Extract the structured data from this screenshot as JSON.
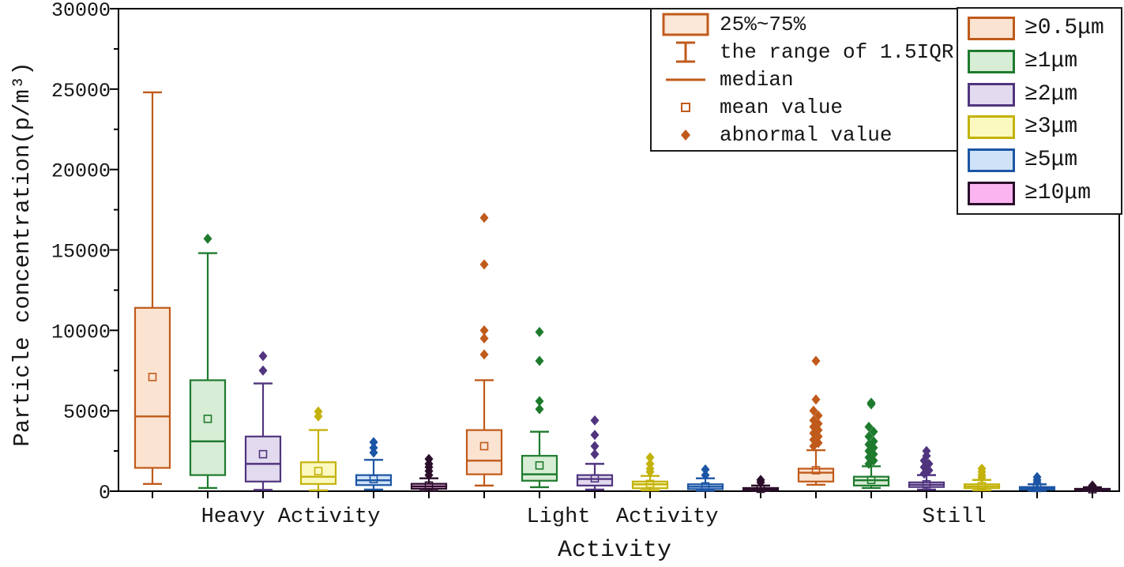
{
  "figure": {
    "y_axis": {
      "label": "Particle concentration(p/m³)",
      "ticks": [
        0,
        5000,
        10000,
        15000,
        20000,
        25000,
        30000
      ],
      "minor_ticks": [
        2500,
        7500,
        12500,
        17500,
        22500,
        27500
      ],
      "max": 30000
    },
    "x_axis": {
      "label": "Activity",
      "group_labels": [
        "Heavy Activity",
        "Light  Activity",
        "Still"
      ]
    }
  },
  "legend_stats": {
    "marker_color": "#C05A1A",
    "marker_fill": "#FBE8D8",
    "items": [
      {
        "marker": "box",
        "label": "25%~75%"
      },
      {
        "marker": "whisker",
        "label": "the range of 1.5IQR"
      },
      {
        "marker": "median-line",
        "label": "median"
      },
      {
        "marker": "mean-square",
        "label": "mean value"
      },
      {
        "marker": "diamond",
        "label": "abnormal value"
      }
    ]
  },
  "legend_series": {
    "items": [
      {
        "label": "≥0.5μm",
        "fill": "#FBE3D1",
        "border": "#C05A1A"
      },
      {
        "label": "≥1μm",
        "fill": "#D8EDD5",
        "border": "#1E7B2E"
      },
      {
        "label": "≥2μm",
        "fill": "#E2DAEE",
        "border": "#50357E"
      },
      {
        "label": "≥3μm",
        "fill": "#FBF9C0",
        "border": "#C3B20A"
      },
      {
        "label": "≥5μm",
        "fill": "#CFE2F7",
        "border": "#1C55A5"
      },
      {
        "label": "≥10μm",
        "fill": "#FBB4F0",
        "border": "#2A0E2A"
      }
    ]
  },
  "chart_data": {
    "type": "box",
    "title": "",
    "xlabel": "Activity",
    "ylabel": "Particle concentration(p/m³)",
    "ylim": [
      0,
      30000
    ],
    "grid": false,
    "legend_position": "top-right",
    "categories": [
      "Heavy Activity",
      "Light Activity",
      "Still"
    ],
    "series": [
      {
        "name": "≥0.5μm",
        "border": "#C05A1A",
        "fill": "#FBE3D1",
        "boxes": [
          {
            "whisker_low": 450,
            "q1": 1450,
            "median": 4650,
            "mean": 7100,
            "q3": 11400,
            "whisker_high": 24800,
            "outliers": []
          },
          {
            "whisker_low": 350,
            "q1": 1050,
            "median": 1900,
            "mean": 2800,
            "q3": 3800,
            "whisker_high": 6900,
            "outliers": [
              17000,
              14100,
              10000,
              9500,
              8500
            ]
          },
          {
            "whisker_low": 400,
            "q1": 600,
            "median": 1150,
            "mean": 1300,
            "q3": 1400,
            "whisker_high": 2550,
            "outliers": [
              8100,
              5700,
              5000,
              4700,
              4400,
              4200,
              4000,
              3800,
              3600,
              3400,
              3200,
              3000,
              2800
            ]
          }
        ]
      },
      {
        "name": "≥1μm",
        "border": "#1E7B2E",
        "fill": "#D8EDD5",
        "boxes": [
          {
            "whisker_low": 200,
            "q1": 1000,
            "median": 3100,
            "mean": 4500,
            "q3": 6900,
            "whisker_high": 14800,
            "outliers": [
              15700
            ]
          },
          {
            "whisker_low": 250,
            "q1": 650,
            "median": 1050,
            "mean": 1600,
            "q3": 2200,
            "whisker_high": 3700,
            "outliers": [
              9900,
              8100,
              5600,
              5100
            ]
          },
          {
            "whisker_low": 200,
            "q1": 350,
            "median": 680,
            "mean": 700,
            "q3": 900,
            "whisker_high": 1550,
            "outliers": [
              5500,
              5400,
              4000,
              3700,
              3400,
              3100,
              2900,
              2700,
              2500,
              2300,
              2100,
              1900,
              1700
            ]
          }
        ]
      },
      {
        "name": "≥2μm",
        "border": "#50357E",
        "fill": "#E2DAEE",
        "boxes": [
          {
            "whisker_low": 80,
            "q1": 600,
            "median": 1700,
            "mean": 2300,
            "q3": 3400,
            "whisker_high": 6700,
            "outliers": [
              8400,
              7500
            ]
          },
          {
            "whisker_low": 100,
            "q1": 350,
            "median": 760,
            "mean": 800,
            "q3": 1000,
            "whisker_high": 1700,
            "outliers": [
              4400,
              3500,
              2800,
              2300
            ]
          },
          {
            "whisker_low": 100,
            "q1": 260,
            "median": 400,
            "mean": 430,
            "q3": 550,
            "whisker_high": 1000,
            "outliers": [
              2500,
              2200,
              1900,
              1700,
              1500,
              1300,
              1100
            ]
          }
        ]
      },
      {
        "name": "≥3μm",
        "border": "#C3B20A",
        "fill": "#FBF9C0",
        "boxes": [
          {
            "whisker_low": 50,
            "q1": 450,
            "median": 900,
            "mean": 1250,
            "q3": 1800,
            "whisker_high": 3800,
            "outliers": [
              4950,
              4650
            ]
          },
          {
            "whisker_low": 50,
            "q1": 180,
            "median": 430,
            "mean": 450,
            "q3": 600,
            "whisker_high": 950,
            "outliers": [
              2100,
              1700,
              1400,
              1200
            ]
          },
          {
            "whisker_low": 50,
            "q1": 180,
            "median": 300,
            "mean": 320,
            "q3": 430,
            "whisker_high": 700,
            "outliers": [
              1400,
              1200,
              1000,
              850
            ]
          }
        ]
      },
      {
        "name": "≥5μm",
        "border": "#1C55A5",
        "fill": "#CFE2F7",
        "boxes": [
          {
            "whisker_low": 100,
            "q1": 380,
            "median": 680,
            "mean": 750,
            "q3": 1000,
            "whisker_high": 1950,
            "outliers": [
              3050,
              2700,
              2400
            ]
          },
          {
            "whisker_low": 30,
            "q1": 130,
            "median": 280,
            "mean": 300,
            "q3": 430,
            "whisker_high": 800,
            "outliers": [
              1350,
              1000
            ]
          },
          {
            "whisker_low": 30,
            "q1": 100,
            "median": 180,
            "mean": 200,
            "q3": 260,
            "whisker_high": 430,
            "outliers": [
              880,
              700,
              550
            ]
          }
        ]
      },
      {
        "name": "≥10μm",
        "border": "#2A0E2A",
        "fill": "#FBB4F0",
        "boxes": [
          {
            "whisker_low": 30,
            "q1": 150,
            "median": 300,
            "mean": 350,
            "q3": 460,
            "whisker_high": 800,
            "outliers": [
              2000,
              1700,
              1500,
              1250,
              1000
            ]
          },
          {
            "whisker_low": 10,
            "q1": 60,
            "median": 120,
            "mean": 150,
            "q3": 200,
            "whisker_high": 350,
            "outliers": [
              700,
              550
            ]
          },
          {
            "whisker_low": 10,
            "q1": 50,
            "median": 100,
            "mean": 120,
            "q3": 150,
            "whisker_high": 250,
            "outliers": [
              350
            ]
          }
        ]
      }
    ]
  }
}
